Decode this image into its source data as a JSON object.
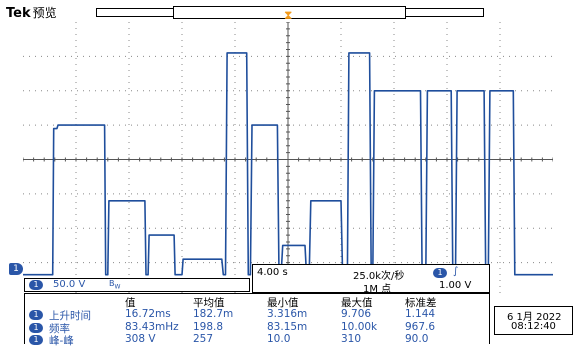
{
  "header": {
    "brand": "Tek",
    "mode": "预览"
  },
  "colors": {
    "trace": "#1f4e9c",
    "channel": "#2a56a8",
    "trigger": "#f39b1c",
    "grid": "#888888"
  },
  "channel": {
    "marker": "1",
    "scale": "50.0 V",
    "bandwidth_icon": "bw-limit-icon"
  },
  "timebase": {
    "time_per_div": "4.00 s",
    "sample_rate": "25.0k次/秒",
    "record_length": "1M 点",
    "trigger_channel": "1",
    "trigger_slope": "∫",
    "trigger_level": "1.00 V"
  },
  "measurements": {
    "headers": [
      "值",
      "平均值",
      "最小值",
      "最大值",
      "标准差"
    ],
    "rows": [
      {
        "channel": "1",
        "name": "上升时间",
        "value": "16.72ms",
        "mean": "182.7m",
        "min": "3.316m",
        "max": "9.706",
        "std": "1.144"
      },
      {
        "channel": "1",
        "name": "频率",
        "value": "83.43mHz",
        "mean": "198.8",
        "min": "83.15m",
        "max": "10.00k",
        "std": "967.6"
      },
      {
        "channel": "1",
        "name": "峰-峰",
        "value": "308 V",
        "mean": "257",
        "min": "10.0",
        "max": "310",
        "std": "90.0"
      }
    ]
  },
  "datetime": {
    "date": "6 1月 2022",
    "time": "08:12:40"
  },
  "chart_data": {
    "type": "line",
    "x_divisions": 10,
    "y_divisions": 8,
    "ylim": [
      -4,
      4
    ],
    "xlim": [
      0,
      10
    ],
    "grid": true,
    "series": [
      {
        "x": [
          0,
          0.56,
          0.58,
          0.64,
          0.66,
          1.54,
          1.56,
          1.6,
          1.62,
          2.3,
          2.32,
          2.36,
          2.38,
          2.85,
          2.87,
          3.0,
          3.02,
          3.75,
          3.78,
          3.82,
          3.85,
          4.22,
          4.25,
          4.29,
          4.32,
          4.8,
          4.83,
          4.87,
          4.9,
          5.32,
          5.35,
          5.4,
          5.43,
          6.0,
          6.03,
          6.12,
          6.15,
          6.54,
          6.57,
          6.6,
          6.63,
          7.5,
          7.53,
          7.6,
          7.63,
          8.08,
          8.11,
          8.16,
          8.19,
          8.7,
          8.73,
          8.78,
          8.81,
          9.25,
          9.28,
          9.36,
          9.4,
          10
        ],
        "y": [
          -3.35,
          -3.35,
          0.9,
          0.9,
          1.0,
          1.0,
          -3.35,
          -3.35,
          -1.2,
          -1.2,
          -3.35,
          -3.35,
          -2.2,
          -2.2,
          -3.35,
          -3.35,
          -2.9,
          -2.9,
          -3.35,
          -3.35,
          3.1,
          3.1,
          -3.35,
          -3.35,
          1.0,
          1.0,
          -3.35,
          -3.35,
          -2.5,
          -2.5,
          -3.35,
          -3.35,
          -1.2,
          -1.2,
          -3.35,
          -3.35,
          3.1,
          3.1,
          -3.35,
          -3.35,
          2.0,
          2.0,
          -3.35,
          -3.35,
          2.0,
          2.0,
          -3.35,
          -3.35,
          2.0,
          2.0,
          -3.35,
          -3.35,
          2.0,
          2.0,
          -3.35,
          -3.35,
          -3.35,
          -3.35
        ]
      }
    ]
  }
}
